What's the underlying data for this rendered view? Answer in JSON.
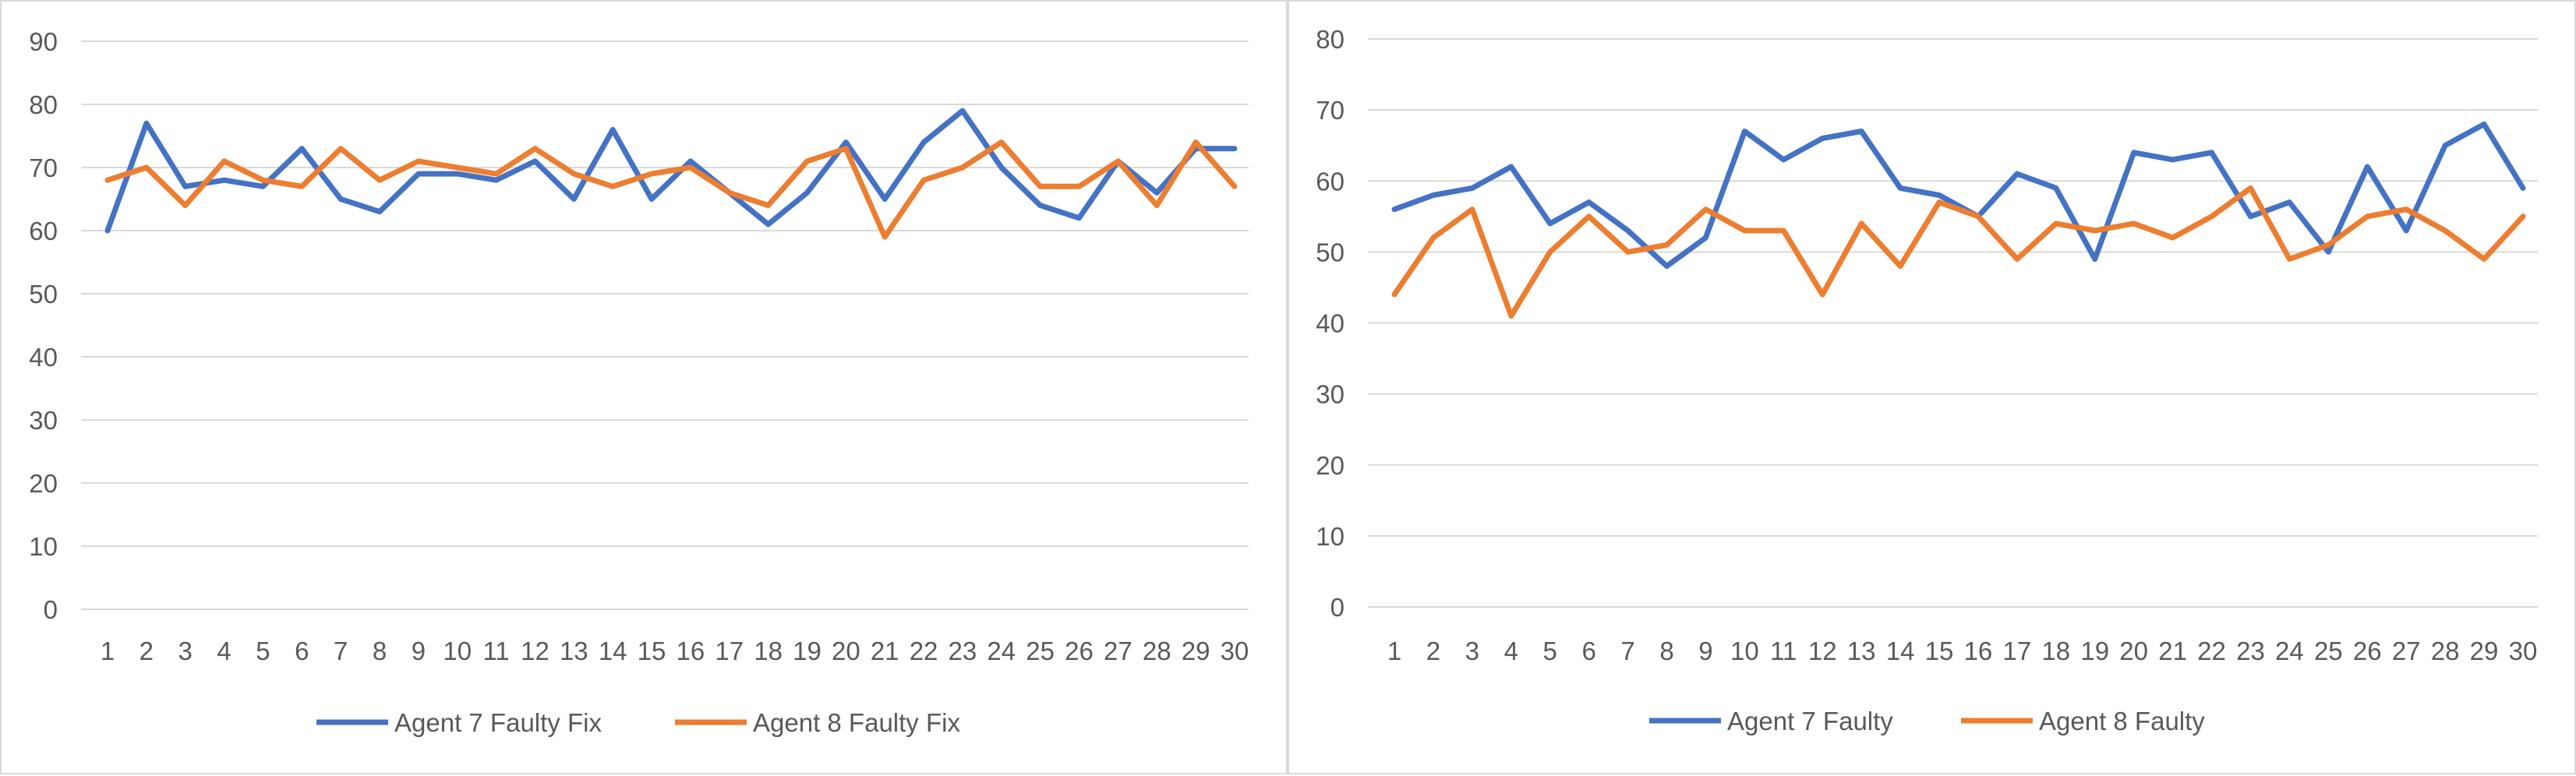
{
  "chart_data": [
    {
      "type": "line",
      "title": "",
      "xlabel": "",
      "ylabel": "",
      "categories": [
        "1",
        "2",
        "3",
        "4",
        "5",
        "6",
        "7",
        "8",
        "9",
        "10",
        "11",
        "12",
        "13",
        "14",
        "15",
        "16",
        "17",
        "18",
        "19",
        "20",
        "21",
        "22",
        "23",
        "24",
        "25",
        "26",
        "27",
        "28",
        "29",
        "30"
      ],
      "ylim": [
        0,
        90
      ],
      "yticks": [
        0,
        10,
        20,
        30,
        40,
        50,
        60,
        70,
        80,
        90
      ],
      "grid": true,
      "legend": "bottom",
      "series": [
        {
          "name": "Agent 7 Faulty Fix",
          "color": "#4472c4",
          "values": [
            60,
            77,
            67,
            68,
            67,
            73,
            65,
            63,
            69,
            69,
            68,
            71,
            65,
            76,
            65,
            71,
            66,
            61,
            66,
            74,
            65,
            74,
            79,
            70,
            64,
            62,
            71,
            66,
            73,
            73
          ]
        },
        {
          "name": "Agent 8 Faulty Fix",
          "color": "#ed7d31",
          "values": [
            68,
            70,
            64,
            71,
            68,
            67,
            73,
            68,
            71,
            70,
            69,
            73,
            69,
            67,
            69,
            70,
            66,
            64,
            71,
            73,
            59,
            68,
            70,
            74,
            67,
            67,
            71,
            64,
            74,
            67
          ]
        }
      ]
    },
    {
      "type": "line",
      "title": "",
      "xlabel": "",
      "ylabel": "",
      "categories": [
        "1",
        "2",
        "3",
        "4",
        "5",
        "6",
        "7",
        "8",
        "9",
        "10",
        "11",
        "12",
        "13",
        "14",
        "15",
        "16",
        "17",
        "18",
        "19",
        "20",
        "21",
        "22",
        "23",
        "24",
        "25",
        "26",
        "27",
        "28",
        "29",
        "30"
      ],
      "ylim": [
        0,
        80
      ],
      "yticks": [
        0,
        10,
        20,
        30,
        40,
        50,
        60,
        70,
        80
      ],
      "grid": true,
      "legend": "bottom",
      "series": [
        {
          "name": "Agent 7 Faulty",
          "color": "#4472c4",
          "values": [
            56,
            58,
            59,
            62,
            54,
            57,
            53,
            48,
            52,
            67,
            63,
            66,
            67,
            59,
            58,
            55,
            61,
            59,
            49,
            64,
            63,
            64,
            55,
            57,
            50,
            62,
            53,
            65,
            68,
            59
          ]
        },
        {
          "name": "Agent 8 Faulty",
          "color": "#ed7d31",
          "values": [
            44,
            52,
            56,
            41,
            50,
            55,
            50,
            51,
            56,
            53,
            53,
            44,
            54,
            48,
            57,
            55,
            49,
            54,
            53,
            54,
            52,
            55,
            59,
            49,
            51,
            55,
            56,
            53,
            49,
            55
          ]
        }
      ]
    }
  ]
}
